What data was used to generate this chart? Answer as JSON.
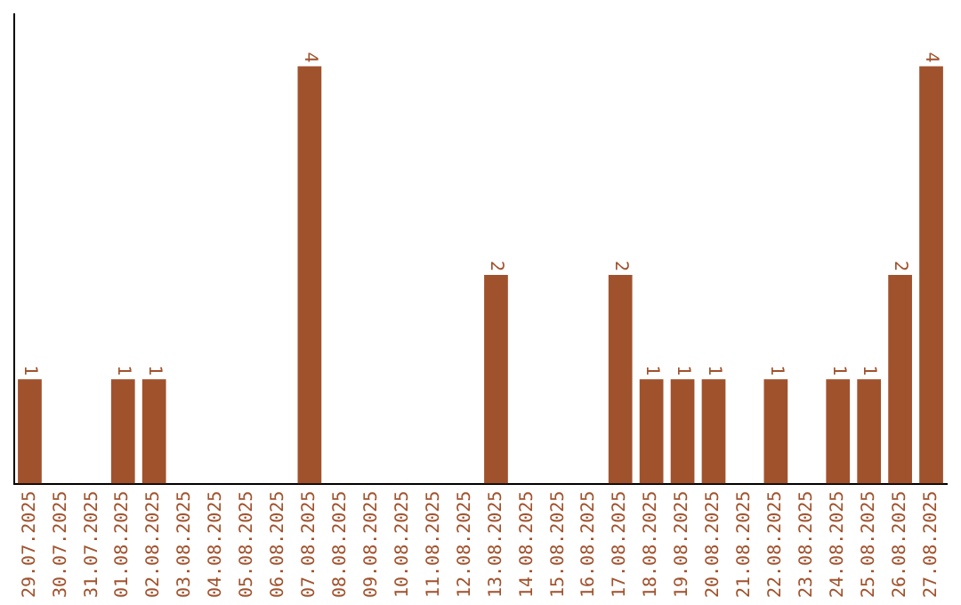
{
  "chart_data": {
    "type": "bar",
    "categories": [
      "29.07.2025",
      "30.07.2025",
      "31.07.2025",
      "01.08.2025",
      "02.08.2025",
      "03.08.2025",
      "04.08.2025",
      "05.08.2025",
      "06.08.2025",
      "07.08.2025",
      "08.08.2025",
      "09.08.2025",
      "10.08.2025",
      "11.08.2025",
      "12.08.2025",
      "13.08.2025",
      "14.08.2025",
      "15.08.2025",
      "16.08.2025",
      "17.08.2025",
      "18.08.2025",
      "19.08.2025",
      "20.08.2025",
      "21.08.2025",
      "22.08.2025",
      "23.08.2025",
      "24.08.2025",
      "25.08.2025",
      "26.08.2025",
      "27.08.2025"
    ],
    "values": [
      1,
      0,
      0,
      1,
      1,
      0,
      0,
      0,
      0,
      4,
      0,
      0,
      0,
      0,
      0,
      2,
      0,
      0,
      0,
      2,
      1,
      1,
      1,
      0,
      1,
      0,
      1,
      1,
      2,
      4
    ],
    "value_labels": [
      "1",
      null,
      null,
      "1",
      "1",
      null,
      null,
      null,
      null,
      "4",
      null,
      null,
      null,
      null,
      null,
      "2",
      null,
      null,
      null,
      "2",
      "1",
      "1",
      "1",
      null,
      "1",
      null,
      "1",
      "1",
      "2",
      "4"
    ],
    "color": "#a0522d",
    "grid": false,
    "legend": false,
    "tick_labels": "x"
  }
}
